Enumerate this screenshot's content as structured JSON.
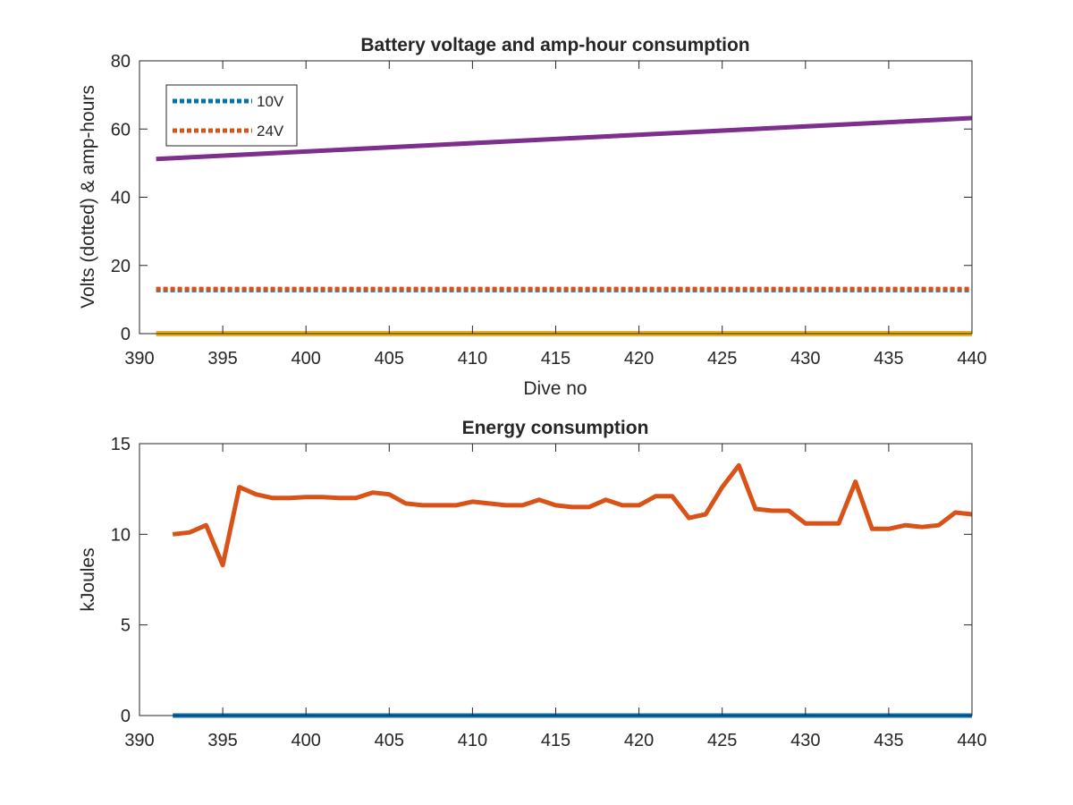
{
  "chart_data": [
    {
      "type": "line",
      "title": "Battery voltage and amp-hour consumption",
      "xlabel": "Dive no",
      "ylabel": "Volts (dotted) & amp-hours",
      "xlim": [
        390,
        440
      ],
      "ylim": [
        0,
        80
      ],
      "xticks": [
        390,
        395,
        400,
        405,
        410,
        415,
        420,
        425,
        430,
        435,
        440
      ],
      "yticks": [
        0,
        20,
        40,
        60,
        80
      ],
      "grid": false,
      "legend_position": "top-left",
      "series": [
        {
          "name": "10V",
          "style": "dotted",
          "color": "#0072BD",
          "x": [
            391,
            440
          ],
          "y": [
            12.8,
            12.8
          ]
        },
        {
          "name": "24V",
          "style": "dotted",
          "color": "#D95319",
          "x": [
            391,
            440
          ],
          "y": [
            13.1,
            13.1
          ]
        },
        {
          "style": "solid",
          "color": "#EDB120",
          "x": [
            391,
            440
          ],
          "y": [
            0,
            0
          ]
        },
        {
          "style": "solid",
          "color": "#7E2F8E",
          "x": [
            391,
            440
          ],
          "y": [
            51.2,
            63.2
          ]
        }
      ]
    },
    {
      "type": "line",
      "title": "Energy consumption",
      "xlabel": "",
      "ylabel": "kJoules",
      "xlim": [
        390,
        440
      ],
      "ylim": [
        0,
        15
      ],
      "xticks": [
        390,
        395,
        400,
        405,
        410,
        415,
        420,
        425,
        430,
        435,
        440
      ],
      "yticks": [
        0,
        5,
        10,
        15
      ],
      "grid": false,
      "series": [
        {
          "style": "solid",
          "color": "#D95319",
          "x": [
            392,
            393,
            394,
            395,
            396,
            397,
            398,
            399,
            400,
            401,
            402,
            403,
            404,
            405,
            406,
            407,
            408,
            409,
            410,
            411,
            412,
            413,
            414,
            415,
            416,
            417,
            418,
            419,
            420,
            421,
            422,
            423,
            424,
            425,
            426,
            427,
            428,
            429,
            430,
            431,
            432,
            433,
            434,
            435,
            436,
            437,
            438,
            439,
            440
          ],
          "y": [
            10.0,
            10.1,
            10.5,
            8.3,
            12.6,
            12.2,
            12.0,
            12.0,
            12.05,
            12.05,
            12.0,
            12.0,
            12.3,
            12.2,
            11.7,
            11.6,
            11.6,
            11.6,
            11.8,
            11.7,
            11.6,
            11.6,
            11.9,
            11.6,
            11.5,
            11.5,
            11.9,
            11.6,
            11.6,
            12.1,
            12.1,
            10.9,
            11.1,
            12.6,
            13.8,
            11.4,
            11.3,
            11.3,
            10.6,
            10.6,
            10.6,
            12.9,
            10.3,
            10.3,
            10.5,
            10.4,
            10.5,
            11.2,
            11.1
          ]
        },
        {
          "style": "solid",
          "color": "#0072BD",
          "x": [
            392,
            440
          ],
          "y": [
            0,
            0
          ]
        }
      ]
    }
  ]
}
